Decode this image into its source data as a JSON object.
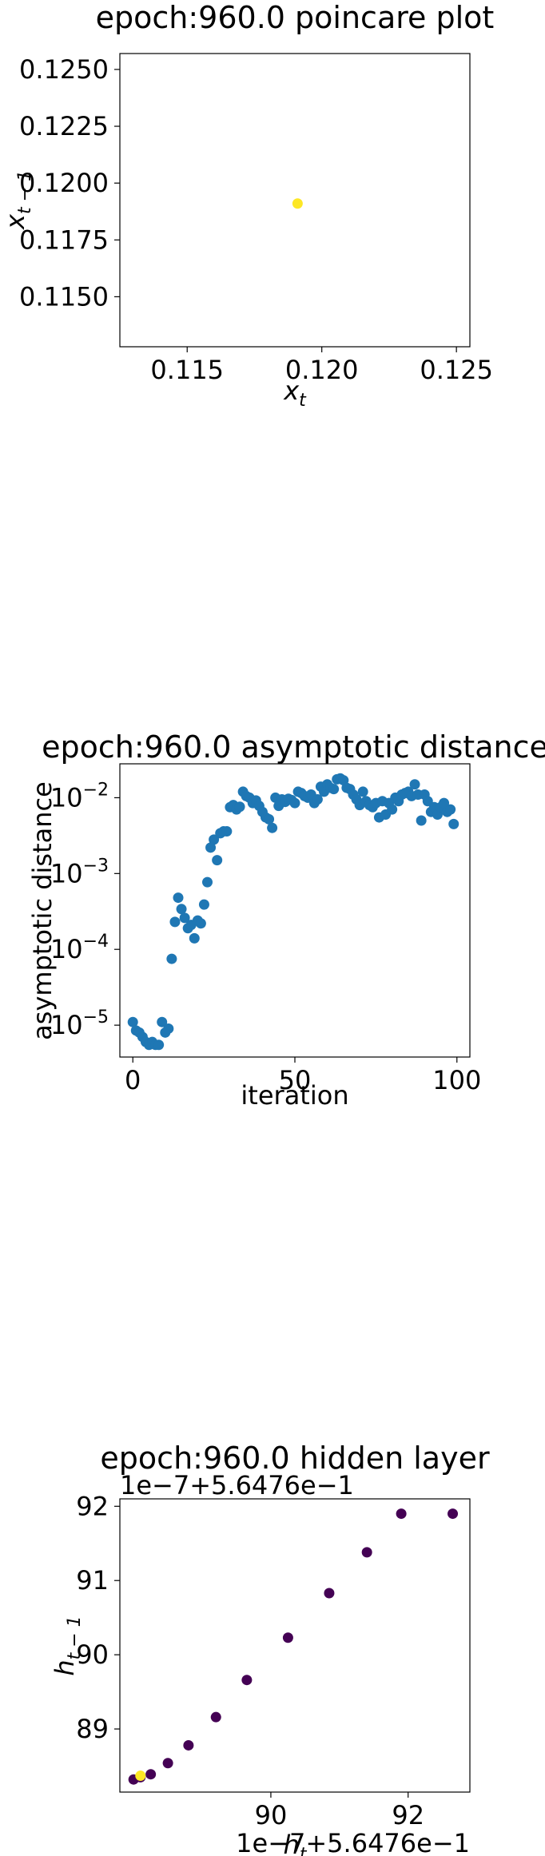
{
  "chart_data": [
    {
      "type": "scatter",
      "title": "epoch:960.0 poincare plot",
      "xlabel": "x_t",
      "ylabel": "x_{t-1}",
      "xlim": [
        0.1125,
        0.1255
      ],
      "ylim": [
        0.1128,
        0.1257
      ],
      "xticks": [
        0.115,
        0.12,
        0.125
      ],
      "xtick_labels": [
        "0.115",
        "0.120",
        "0.125"
      ],
      "yticks": [
        0.115,
        0.1175,
        0.12,
        0.1225,
        0.125
      ],
      "ytick_labels": [
        "0.1150",
        "0.1175",
        "0.1200",
        "0.1225",
        "0.1250"
      ],
      "grid": false,
      "points": [
        {
          "x": 0.1191,
          "y": 0.1191,
          "color": "#fde725"
        }
      ]
    },
    {
      "type": "scatter",
      "title": "epoch:960.0 asymptotic distance",
      "xlabel": "iteration",
      "ylabel": "asymptotic distance",
      "yscale": "log",
      "xlim": [
        -4,
        104
      ],
      "ylim": [
        3.8e-06,
        0.028
      ],
      "xticks": [
        0,
        50,
        100
      ],
      "xtick_labels": [
        "0",
        "50",
        "100"
      ],
      "yticks": [
        1e-05,
        0.0001,
        0.001,
        0.01
      ],
      "ytick_labels": [
        [
          "10",
          "−5"
        ],
        [
          "10",
          "−4"
        ],
        [
          "10",
          "−3"
        ],
        [
          "10",
          "−2"
        ]
      ],
      "grid": false,
      "color": "#1f77b4",
      "x": [
        0,
        1,
        2,
        3,
        4,
        5,
        6,
        7,
        8,
        9,
        10,
        11,
        12,
        13,
        14,
        15,
        16,
        17,
        18,
        19,
        20,
        21,
        22,
        23,
        24,
        25,
        26,
        27,
        28,
        29,
        30,
        31,
        32,
        33,
        34,
        35,
        36,
        37,
        38,
        39,
        40,
        41,
        42,
        43,
        44,
        45,
        46,
        47,
        48,
        49,
        50,
        51,
        52,
        53,
        54,
        55,
        56,
        57,
        58,
        59,
        60,
        61,
        62,
        63,
        64,
        65,
        66,
        67,
        68,
        69,
        70,
        71,
        72,
        73,
        74,
        75,
        76,
        77,
        78,
        79,
        80,
        81,
        82,
        83,
        84,
        85,
        86,
        87,
        88,
        89,
        90,
        91,
        92,
        93,
        94,
        95,
        96,
        97,
        98,
        99
      ],
      "y": [
        1.1e-05,
        8.5e-06,
        8e-06,
        7e-06,
        6e-06,
        5.5e-06,
        6e-06,
        5.5e-06,
        5.5e-06,
        1.1e-05,
        8e-06,
        9e-06,
        7.5e-05,
        0.00023,
        0.00048,
        0.00034,
        0.00026,
        0.00019,
        0.00021,
        0.00014,
        0.00024,
        0.00022,
        0.00039,
        0.00077,
        0.0022,
        0.0028,
        0.0015,
        0.0034,
        0.0036,
        0.0036,
        0.0075,
        0.008,
        0.007,
        0.0076,
        0.012,
        0.0105,
        0.01,
        0.0085,
        0.0092,
        0.0078,
        0.0065,
        0.0055,
        0.0052,
        0.004,
        0.01,
        0.0078,
        0.0095,
        0.0088,
        0.0097,
        0.0093,
        0.0085,
        0.012,
        0.0115,
        0.0105,
        0.01,
        0.011,
        0.0085,
        0.0095,
        0.014,
        0.012,
        0.015,
        0.0135,
        0.013,
        0.0175,
        0.018,
        0.017,
        0.0135,
        0.013,
        0.011,
        0.0095,
        0.008,
        0.012,
        0.009,
        0.008,
        0.0075,
        0.0085,
        0.0055,
        0.009,
        0.006,
        0.0085,
        0.007,
        0.01,
        0.009,
        0.011,
        0.0115,
        0.012,
        0.0105,
        0.015,
        0.011,
        0.005,
        0.011,
        0.009,
        0.0065,
        0.0075,
        0.006,
        0.0075,
        0.0085,
        0.0065,
        0.007,
        0.0045
      ]
    },
    {
      "type": "scatter",
      "title": "epoch:960.0 hidden layer",
      "xlabel": "h_t",
      "ylabel": "h_{t-1}",
      "x_offset_text": "1e−7+5.6476e−1",
      "y_offset_text": "1e−7+5.6476e−1",
      "xlim": [
        87.8,
        92.9
      ],
      "ylim": [
        88.15,
        92.1
      ],
      "xticks": [
        90,
        92
      ],
      "xtick_labels": [
        "90",
        "92"
      ],
      "yticks": [
        89,
        90,
        91,
        92
      ],
      "ytick_labels": [
        "89",
        "90",
        "91",
        "92"
      ],
      "grid": false,
      "points": [
        {
          "x": 88.0,
          "y": 88.32,
          "color": "#440154"
        },
        {
          "x": 88.1,
          "y": 88.35,
          "color": "#440154"
        },
        {
          "x": 88.1,
          "y": 88.36,
          "color": "#440154"
        },
        {
          "x": 88.25,
          "y": 88.39,
          "color": "#440154"
        },
        {
          "x": 88.5,
          "y": 88.54,
          "color": "#440154"
        },
        {
          "x": 88.8,
          "y": 88.78,
          "color": "#440154"
        },
        {
          "x": 89.2,
          "y": 89.16,
          "color": "#440154"
        },
        {
          "x": 89.65,
          "y": 89.66,
          "color": "#440154"
        },
        {
          "x": 90.25,
          "y": 90.23,
          "color": "#440154"
        },
        {
          "x": 90.85,
          "y": 90.83,
          "color": "#440154"
        },
        {
          "x": 91.4,
          "y": 91.38,
          "color": "#440154"
        },
        {
          "x": 91.9,
          "y": 91.9,
          "color": "#440154"
        },
        {
          "x": 92.65,
          "y": 91.9,
          "color": "#440154"
        },
        {
          "x": 88.1,
          "y": 88.37,
          "color": "#fde725"
        }
      ]
    }
  ]
}
